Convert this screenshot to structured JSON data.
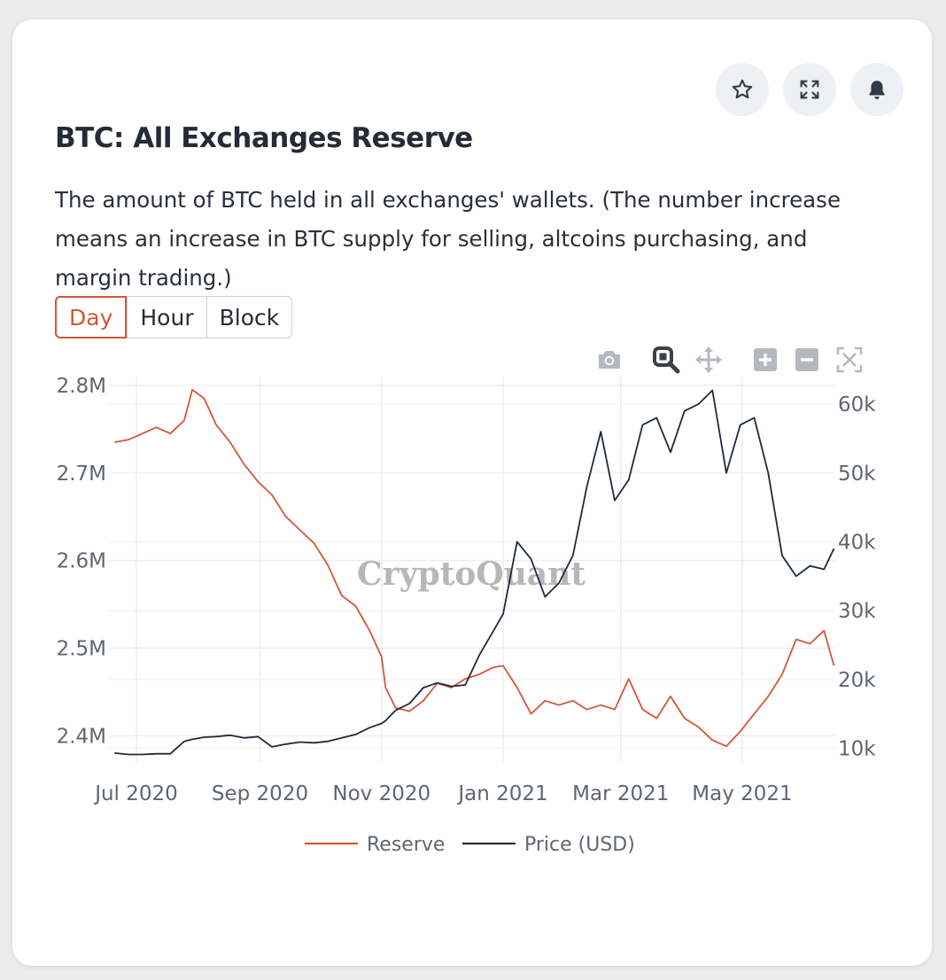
{
  "card": {
    "title": "BTC: All Exchanges Reserve",
    "description": "The amount of BTC held in all exchanges' wallets. (The number increase means an increase in BTC supply for selling, altcoins purchasing, and margin trading.)",
    "actions": [
      {
        "name": "star-button",
        "icon": "star-icon"
      },
      {
        "name": "expand-button",
        "icon": "expand-icon"
      },
      {
        "name": "alert-button",
        "icon": "bell-icon"
      }
    ],
    "intervals": [
      "Day",
      "Hour",
      "Block"
    ],
    "selected_interval": "Day"
  },
  "modebar": [
    "camera-icon",
    "zoom-icon",
    "pan-icon",
    "zoom-in-icon",
    "zoom-out-icon",
    "autoscale-icon"
  ],
  "watermark": "CryptoQuant",
  "colors": {
    "reserve": "#d2573a",
    "price": "#1f2a3c",
    "accent": "#d2573a"
  },
  "chart_data": {
    "type": "line",
    "x_ticks": [
      "Jul 2020",
      "Sep 2020",
      "Nov 2020",
      "Jan 2021",
      "Mar 2021",
      "May 2021"
    ],
    "y_left_ticks": [
      "2.4M",
      "2.5M",
      "2.6M",
      "2.7M",
      "2.8M"
    ],
    "y_right_ticks": [
      "10k",
      "20k",
      "30k",
      "40k",
      "50k",
      "60k"
    ],
    "y_left_range": [
      2370000,
      2810000
    ],
    "y_right_range": [
      8000,
      64000
    ],
    "legend": [
      "Reserve",
      "Price (USD)"
    ],
    "legend_position": "bottom-center",
    "grid": true,
    "series": [
      {
        "name": "Reserve",
        "axis": "left",
        "x": [
          "2020-06-20",
          "2020-06-27",
          "2020-07-04",
          "2020-07-11",
          "2020-07-18",
          "2020-07-25",
          "2020-07-29",
          "2020-08-04",
          "2020-08-10",
          "2020-08-17",
          "2020-08-24",
          "2020-08-31",
          "2020-09-07",
          "2020-09-14",
          "2020-09-21",
          "2020-09-28",
          "2020-10-05",
          "2020-10-12",
          "2020-10-19",
          "2020-10-26",
          "2020-11-01",
          "2020-11-03",
          "2020-11-08",
          "2020-11-15",
          "2020-11-22",
          "2020-11-29",
          "2020-12-06",
          "2020-12-13",
          "2020-12-20",
          "2020-12-27",
          "2021-01-01",
          "2021-01-08",
          "2021-01-15",
          "2021-01-22",
          "2021-01-29",
          "2021-02-05",
          "2021-02-12",
          "2021-02-19",
          "2021-02-26",
          "2021-03-05",
          "2021-03-12",
          "2021-03-19",
          "2021-03-26",
          "2021-04-02",
          "2021-04-09",
          "2021-04-16",
          "2021-04-23",
          "2021-04-30",
          "2021-05-07",
          "2021-05-14",
          "2021-05-21",
          "2021-05-28",
          "2021-06-04",
          "2021-06-11",
          "2021-06-16"
        ],
        "values": [
          2735000,
          2738000,
          2745000,
          2752000,
          2745000,
          2760000,
          2795000,
          2785000,
          2755000,
          2735000,
          2710000,
          2690000,
          2675000,
          2650000,
          2635000,
          2620000,
          2595000,
          2560000,
          2548000,
          2520000,
          2490000,
          2455000,
          2432000,
          2428000,
          2440000,
          2460000,
          2455000,
          2465000,
          2470000,
          2478000,
          2480000,
          2455000,
          2425000,
          2440000,
          2435000,
          2440000,
          2430000,
          2435000,
          2430000,
          2465000,
          2430000,
          2420000,
          2445000,
          2420000,
          2410000,
          2395000,
          2388000,
          2405000,
          2425000,
          2445000,
          2470000,
          2510000,
          2505000,
          2520000,
          2480000
        ]
      },
      {
        "name": "Price (USD)",
        "axis": "right",
        "x": [
          "2020-06-20",
          "2020-06-27",
          "2020-07-04",
          "2020-07-11",
          "2020-07-18",
          "2020-07-25",
          "2020-07-29",
          "2020-08-04",
          "2020-08-10",
          "2020-08-17",
          "2020-08-24",
          "2020-08-31",
          "2020-09-07",
          "2020-09-14",
          "2020-09-21",
          "2020-09-28",
          "2020-10-05",
          "2020-10-12",
          "2020-10-19",
          "2020-10-26",
          "2020-11-01",
          "2020-11-03",
          "2020-11-08",
          "2020-11-15",
          "2020-11-22",
          "2020-11-29",
          "2020-12-06",
          "2020-12-13",
          "2020-12-20",
          "2020-12-27",
          "2021-01-01",
          "2021-01-08",
          "2021-01-15",
          "2021-01-22",
          "2021-01-29",
          "2021-02-05",
          "2021-02-12",
          "2021-02-19",
          "2021-02-26",
          "2021-03-05",
          "2021-03-12",
          "2021-03-19",
          "2021-03-26",
          "2021-04-02",
          "2021-04-09",
          "2021-04-16",
          "2021-04-23",
          "2021-04-30",
          "2021-05-07",
          "2021-05-14",
          "2021-05-21",
          "2021-05-28",
          "2021-06-04",
          "2021-06-11",
          "2021-06-16"
        ],
        "values": [
          9300,
          9100,
          9100,
          9200,
          9200,
          11000,
          11300,
          11600,
          11700,
          11900,
          11500,
          11700,
          10200,
          10600,
          10900,
          10800,
          11000,
          11500,
          12000,
          13000,
          13600,
          14000,
          15500,
          16500,
          18800,
          19500,
          19000,
          19200,
          23500,
          27000,
          29500,
          40000,
          37500,
          32000,
          34000,
          38000,
          48000,
          56000,
          46000,
          49000,
          57000,
          58000,
          53000,
          59000,
          60000,
          62000,
          50000,
          57000,
          58000,
          50000,
          38000,
          35000,
          36500,
          36000,
          39000
        ]
      }
    ]
  }
}
